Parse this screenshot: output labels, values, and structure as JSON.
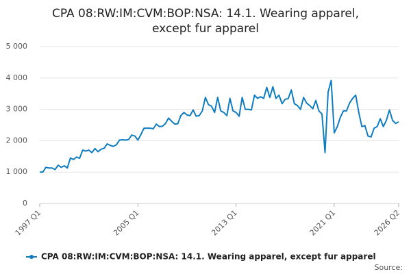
{
  "chart_data": {
    "type": "line",
    "title": "CPA 08:RW:IM:CVM:BOP:NSA: 14.1. Wearing apparel,",
    "title_line2": "except fur apparel",
    "source": "Source:",
    "categories": [
      "1997 Q1",
      null,
      null,
      null,
      null,
      null,
      null,
      null,
      null,
      null,
      null,
      null,
      null,
      null,
      null,
      null,
      null,
      null,
      null,
      null,
      null,
      null,
      null,
      null,
      null,
      null,
      null,
      null,
      null,
      null,
      null,
      null,
      "2005 Q1",
      null,
      null,
      null,
      null,
      null,
      null,
      null,
      null,
      null,
      null,
      null,
      null,
      null,
      null,
      null,
      null,
      null,
      null,
      null,
      null,
      null,
      null,
      null,
      null,
      null,
      null,
      null,
      null,
      null,
      null,
      null,
      "2013 Q1",
      null,
      null,
      null,
      null,
      null,
      null,
      null,
      null,
      null,
      null,
      null,
      null,
      null,
      null,
      null,
      null,
      null,
      null,
      null,
      null,
      null,
      null,
      null,
      null,
      null,
      null,
      null,
      null,
      null,
      null,
      null,
      "2021 Q1",
      null,
      null,
      null,
      null,
      null,
      null,
      null,
      null,
      null,
      null,
      null,
      null,
      null,
      null,
      null,
      null,
      null,
      null,
      null,
      null,
      "2026 Q2"
    ],
    "series": [
      {
        "name": "CPA 08:RW:IM:CVM:BOP:NSA: 14.1. Wearing apparel, except fur apparel",
        "color": "#0e7cbf",
        "values": [
          1000,
          1000,
          1150,
          1130,
          1130,
          1080,
          1220,
          1150,
          1200,
          1130,
          1450,
          1400,
          1480,
          1440,
          1700,
          1670,
          1700,
          1620,
          1750,
          1650,
          1730,
          1760,
          1900,
          1850,
          1820,
          1870,
          2020,
          2030,
          2020,
          2040,
          2180,
          2150,
          2020,
          2200,
          2400,
          2400,
          2400,
          2380,
          2530,
          2450,
          2460,
          2550,
          2720,
          2620,
          2530,
          2540,
          2800,
          2900,
          2820,
          2800,
          2980,
          2780,
          2800,
          2950,
          3380,
          3150,
          3100,
          2900,
          3380,
          2950,
          2900,
          2800,
          3350,
          2950,
          2900,
          2780,
          3380,
          3000,
          3000,
          2980,
          3450,
          3350,
          3400,
          3350,
          3700,
          3380,
          3720,
          3350,
          3450,
          3180,
          3320,
          3340,
          3620,
          3180,
          3120,
          3000,
          3380,
          3200,
          3120,
          3020,
          3280,
          2950,
          2850,
          1620,
          3550,
          3920,
          2250,
          2450,
          2750,
          2950,
          2950,
          3200,
          3350,
          3450,
          2900,
          2450,
          2480,
          2150,
          2120,
          2400,
          2450,
          2700,
          2450,
          2650,
          2980,
          2650,
          2550,
          2600
        ]
      }
    ],
    "ylim": [
      0,
      5000
    ],
    "yticks": [
      0,
      {
        "value": 1000,
        "label": "1 000"
      },
      {
        "value": 2000,
        "label": "2 000"
      },
      {
        "value": 3000,
        "label": "3 000"
      },
      {
        "value": 4000,
        "label": "4 000"
      },
      {
        "value": 5000,
        "label": "5 000"
      }
    ],
    "grid": true
  }
}
